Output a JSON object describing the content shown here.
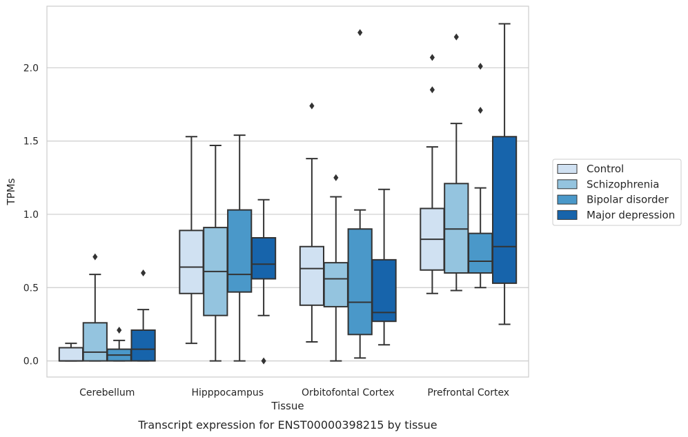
{
  "chart_data": {
    "type": "box",
    "xlabel": "Tissue",
    "ylabel": "TPMs",
    "caption": "Transcript expression for ENST00000398215 by tissue",
    "ylim": [
      -0.11,
      2.42
    ],
    "yticks": [
      "0.0",
      "0.5",
      "1.0",
      "1.5",
      "2.0"
    ],
    "grid": true,
    "legend_position": "right",
    "categories": [
      "Cerebellum",
      "Hipppocampus",
      "Orbitofontal Cortex",
      "Prefrontal Cortex"
    ],
    "series": [
      {
        "name": "Control",
        "color": "#d0e1f2",
        "boxes": [
          {
            "whislo": 0.0,
            "q1": 0.0,
            "med": 0.0,
            "q3": 0.09,
            "whishi": 0.12,
            "fliers": []
          },
          {
            "whislo": 0.12,
            "q1": 0.46,
            "med": 0.64,
            "q3": 0.89,
            "whishi": 1.53,
            "fliers": []
          },
          {
            "whislo": 0.13,
            "q1": 0.38,
            "med": 0.63,
            "q3": 0.78,
            "whishi": 1.38,
            "fliers": [
              1.74
            ]
          },
          {
            "whislo": 0.46,
            "q1": 0.62,
            "med": 0.83,
            "q3": 1.04,
            "whishi": 1.46,
            "fliers": [
              1.85,
              2.07
            ]
          }
        ]
      },
      {
        "name": "Schizophrenia",
        "color": "#94c4df",
        "boxes": [
          {
            "whislo": 0.0,
            "q1": 0.0,
            "med": 0.06,
            "q3": 0.26,
            "whishi": 0.59,
            "fliers": [
              0.71
            ]
          },
          {
            "whislo": 0.0,
            "q1": 0.31,
            "med": 0.61,
            "q3": 0.91,
            "whishi": 1.47,
            "fliers": []
          },
          {
            "whislo": 0.0,
            "q1": 0.37,
            "med": 0.56,
            "q3": 0.67,
            "whishi": 1.12,
            "fliers": [
              1.25
            ]
          },
          {
            "whislo": 0.48,
            "q1": 0.6,
            "med": 0.9,
            "q3": 1.21,
            "whishi": 1.62,
            "fliers": [
              2.21
            ]
          }
        ]
      },
      {
        "name": "Bipolar disorder",
        "color": "#4a98c9",
        "boxes": [
          {
            "whislo": 0.0,
            "q1": 0.0,
            "med": 0.04,
            "q3": 0.08,
            "whishi": 0.14,
            "fliers": [
              0.21
            ]
          },
          {
            "whislo": 0.0,
            "q1": 0.47,
            "med": 0.59,
            "q3": 1.03,
            "whishi": 1.54,
            "fliers": []
          },
          {
            "whislo": 0.02,
            "q1": 0.18,
            "med": 0.4,
            "q3": 0.9,
            "whishi": 1.03,
            "fliers": [
              2.24
            ]
          },
          {
            "whislo": 0.5,
            "q1": 0.6,
            "med": 0.68,
            "q3": 0.87,
            "whishi": 1.18,
            "fliers": [
              1.71,
              2.01
            ]
          }
        ]
      },
      {
        "name": "Major depression",
        "color": "#1764ab",
        "boxes": [
          {
            "whislo": 0.0,
            "q1": 0.0,
            "med": 0.08,
            "q3": 0.21,
            "whishi": 0.35,
            "fliers": [
              0.6
            ]
          },
          {
            "whislo": 0.31,
            "q1": 0.56,
            "med": 0.66,
            "q3": 0.84,
            "whishi": 1.1,
            "fliers": [
              0.0
            ]
          },
          {
            "whislo": 0.11,
            "q1": 0.27,
            "med": 0.33,
            "q3": 0.69,
            "whishi": 1.17,
            "fliers": []
          },
          {
            "whislo": 0.25,
            "q1": 0.53,
            "med": 0.78,
            "q3": 1.53,
            "whishi": 2.3,
            "fliers": []
          }
        ]
      }
    ]
  },
  "colors": {
    "edge": "#333333",
    "grid": "#cccccc",
    "frame": "#cccccc"
  }
}
